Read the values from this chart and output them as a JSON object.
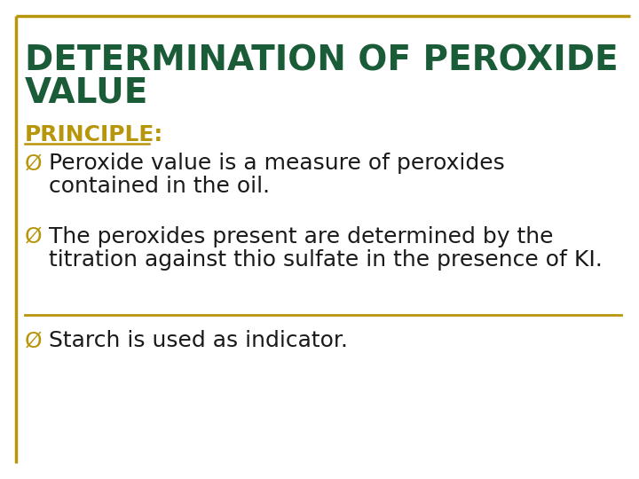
{
  "title_line1": "DETERMINATION OF PEROXIDE",
  "title_line2": "VALUE",
  "title_color": "#1a5c38",
  "title_fontsize": 28,
  "section_label": "PRINCIPLE:",
  "section_color": "#b8960c",
  "section_fontsize": 18,
  "bullet_symbol": "Ø",
  "bullet_color": "#b8960c",
  "bullet_fontsize": 18,
  "body_color": "#1a1a1a",
  "body_fontsize": 18,
  "bg_color": "#ffffff",
  "border_color": "#b8960c",
  "bullet1_line1": "Peroxide value is a measure of peroxides",
  "bullet1_line2": "contained in the oil.",
  "bullet2_line1": "The peroxides present are determined by the",
  "bullet2_line2": "titration against thio sulfate in the presence of KI.",
  "bullet3": "Starch is used as indicator."
}
